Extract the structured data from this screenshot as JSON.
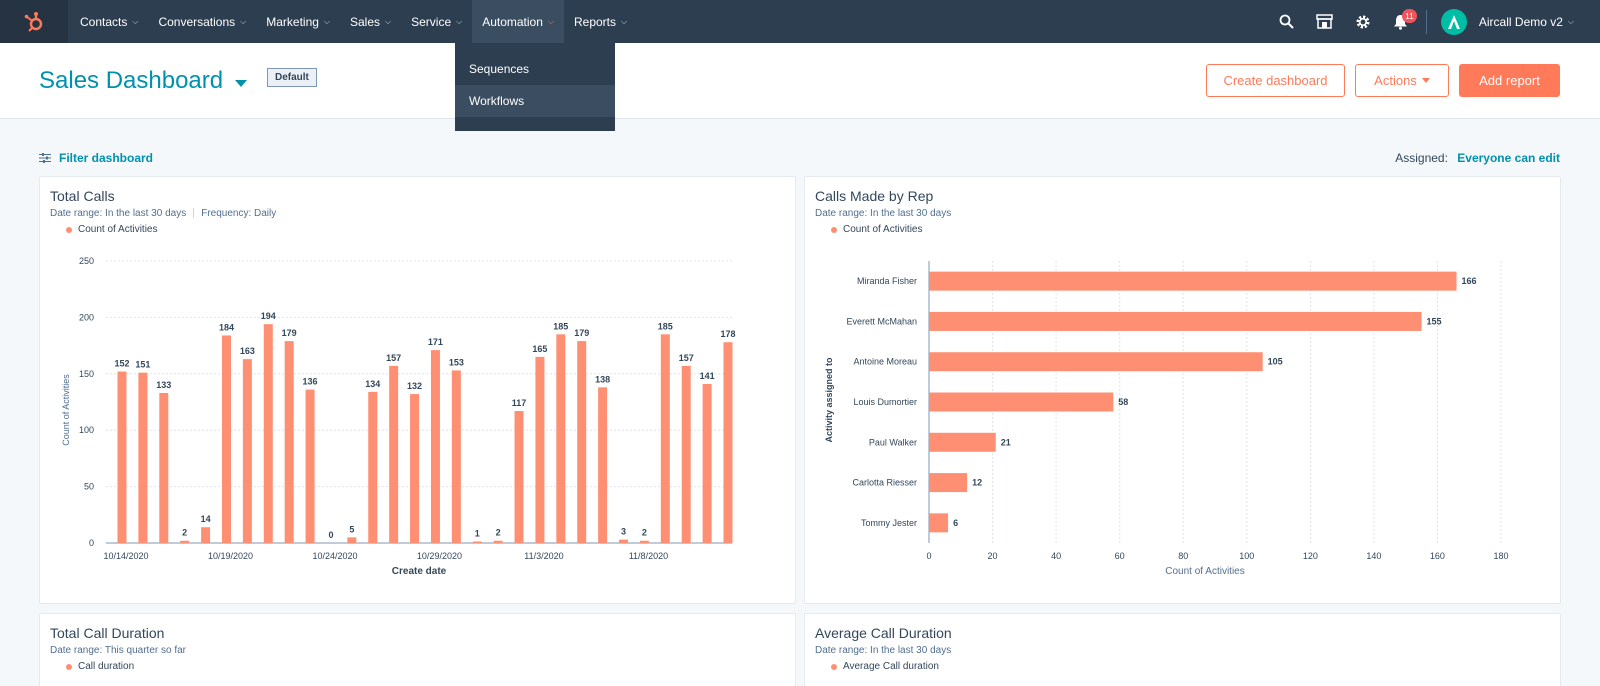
{
  "nav": {
    "logo_icon": "hubspot-sprocket-icon",
    "items": [
      {
        "label": "Contacts"
      },
      {
        "label": "Conversations"
      },
      {
        "label": "Marketing"
      },
      {
        "label": "Sales"
      },
      {
        "label": "Service"
      },
      {
        "label": "Automation"
      },
      {
        "label": "Reports"
      }
    ],
    "active_item": "Automation",
    "notifications_count": "11",
    "account_name": "Aircall Demo v2",
    "icons": [
      "search-icon",
      "marketplace-icon",
      "settings-icon",
      "notifications-icon"
    ]
  },
  "automation_menu": {
    "items": [
      {
        "label": "Sequences"
      },
      {
        "label": "Workflows"
      }
    ],
    "hovered": "Workflows"
  },
  "header": {
    "title": "Sales Dashboard",
    "default_tag": "Default",
    "create_dashboard_label": "Create dashboard",
    "actions_label": "Actions",
    "add_report_label": "Add report"
  },
  "filter": {
    "label": "Filter dashboard",
    "assigned_label": "Assigned:",
    "assigned_value": "Everyone can edit"
  },
  "colors": {
    "accent": "#ff7a59",
    "bar": "#ff8f73",
    "link": "#0091ae",
    "nav_bg": "#2d3e50"
  },
  "cards": {
    "total_calls": {
      "title": "Total Calls",
      "date_range": "Date range:  In the last 30 days",
      "frequency": "Frequency:  Daily",
      "legend": "Count of Activities"
    },
    "calls_by_rep": {
      "title": "Calls Made by Rep",
      "date_range": "Date range:  In the last 30 days",
      "legend": "Count of Activities"
    },
    "total_call_duration": {
      "title": "Total Call Duration",
      "date_range": "Date range:  This quarter so far",
      "legend": "Call duration"
    },
    "average_call_duration": {
      "title": "Average Call Duration",
      "date_range": "Date range:  In the last 30 days",
      "legend": "Average Call duration"
    }
  },
  "chart_data": [
    {
      "type": "bar",
      "title": "Total Calls",
      "xlabel": "Create date",
      "ylabel": "Count of Activities",
      "ylim": [
        0,
        250
      ],
      "yticks": [
        0,
        50,
        100,
        150,
        200,
        250
      ],
      "x_tick_labels": [
        "10/14/2020",
        "10/19/2020",
        "10/24/2020",
        "10/29/2020",
        "11/3/2020",
        "11/8/2020"
      ],
      "x_tick_index": [
        0,
        5,
        10,
        15,
        20,
        25
      ],
      "series": [
        {
          "name": "Count of Activities",
          "values": [
            152,
            151,
            133,
            2,
            14,
            184,
            163,
            194,
            179,
            136,
            0,
            5,
            134,
            157,
            132,
            171,
            153,
            1,
            2,
            117,
            165,
            185,
            179,
            138,
            3,
            2,
            185,
            157,
            141,
            178
          ]
        }
      ],
      "grid": true
    },
    {
      "type": "bar",
      "orientation": "horizontal",
      "title": "Calls Made by Rep",
      "xlabel": "Count of Activities",
      "ylabel": "Activity assigned to",
      "xlim": [
        0,
        180
      ],
      "xticks": [
        0,
        20,
        40,
        60,
        80,
        100,
        120,
        140,
        160,
        180
      ],
      "categories": [
        "Miranda Fisher",
        "Everett McMahan",
        "Antoine Moreau",
        "Louis Dumortier",
        "Paul Walker",
        "Carlotta Riesser",
        "Tommy Jester"
      ],
      "series": [
        {
          "name": "Count of Activities",
          "values": [
            166,
            155,
            105,
            58,
            21,
            12,
            6
          ]
        }
      ],
      "grid": true
    }
  ]
}
